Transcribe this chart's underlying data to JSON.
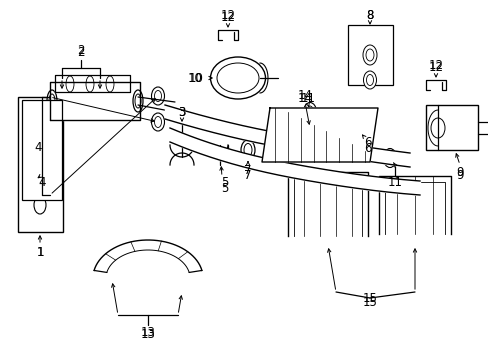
{
  "background_color": "#ffffff",
  "line_color": "#000000",
  "fig_width": 4.89,
  "fig_height": 3.6,
  "dpi": 100,
  "label_fontsize": 8.5,
  "lw": 0.9
}
